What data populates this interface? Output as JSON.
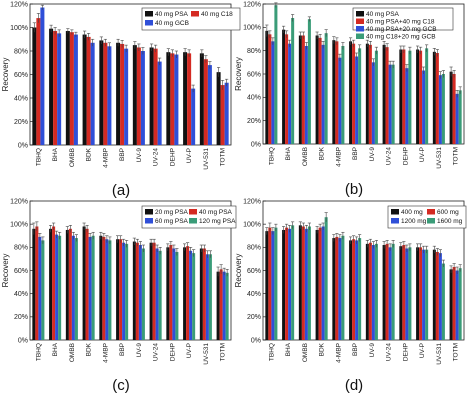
{
  "figure": {
    "categories": [
      "TBHQ",
      "BHA",
      "OMBB",
      "BDK",
      "4-MBP",
      "BBP",
      "UV-9",
      "UV-24",
      "DEHP",
      "UV-P",
      "UV-531",
      "TOTM"
    ],
    "ylabel": "Recovery",
    "ylim": [
      0,
      120
    ],
    "yticks": [
      "0%",
      "20%",
      "40%",
      "60%",
      "80%",
      "100%",
      "120%"
    ]
  },
  "chart_data": [
    {
      "panel": "(a)",
      "type": "bar",
      "ylabel": "Recovery",
      "ylim": [
        0,
        120
      ],
      "legend_position": "top-right",
      "categories": [
        "TBHQ",
        "BHA",
        "OMBB",
        "BDK",
        "4-MBP",
        "BBP",
        "UV-9",
        "UV-24",
        "DEHP",
        "UV-P",
        "UV-531",
        "TOTM"
      ],
      "series": [
        {
          "name": "40 mg PSA",
          "color": "#111111",
          "values": [
            100,
            99,
            97,
            94,
            89,
            87,
            85,
            83,
            79,
            79,
            78,
            62
          ]
        },
        {
          "name": "40 mg C18",
          "color": "#d42a22",
          "values": [
            108,
            97,
            96,
            92,
            87,
            86,
            83,
            82,
            78,
            78,
            73,
            51
          ]
        },
        {
          "name": "40 mg GCB",
          "color": "#2f4fd8",
          "values": [
            117,
            95,
            94,
            87,
            84,
            82,
            80,
            71,
            77,
            48,
            68,
            53
          ]
        }
      ],
      "errors": [
        [
          4,
          3,
          2,
          3,
          3,
          3,
          3,
          3,
          3,
          3,
          3,
          4
        ],
        [
          4,
          3,
          2,
          3,
          3,
          3,
          3,
          3,
          3,
          3,
          3,
          4
        ],
        [
          2,
          3,
          2,
          3,
          3,
          3,
          3,
          3,
          3,
          3,
          3,
          3
        ]
      ]
    },
    {
      "panel": "(b)",
      "type": "bar",
      "ylabel": "Recovery",
      "ylim": [
        0,
        120
      ],
      "legend_position": "top-right",
      "categories": [
        "TBHQ",
        "BHA",
        "OMBB",
        "BDK",
        "4-MBP",
        "BBP",
        "UV-9",
        "UV-24",
        "DEHP",
        "UV-P",
        "UV-531",
        "TOTM"
      ],
      "series": [
        {
          "name": "40 mg PSA",
          "color": "#111111",
          "values": [
            97,
            98,
            93,
            93,
            89,
            88,
            86,
            85,
            81,
            81,
            79,
            62
          ]
        },
        {
          "name": "40 mg PSA+40 mg C18",
          "color": "#d42a22",
          "values": [
            94,
            94,
            93,
            91,
            88,
            86,
            85,
            83,
            81,
            80,
            78,
            60
          ]
        },
        {
          "name": "40 mg PSA+20 mg GCB",
          "color": "#2f4fd8",
          "values": [
            88,
            86,
            84,
            85,
            74,
            75,
            70,
            68,
            65,
            63,
            59,
            43
          ]
        },
        {
          "name": "40 mg C18+20 mg GCB",
          "color": "#3a9c78",
          "values": [
            119,
            108,
            107,
            95,
            84,
            82,
            80,
            68,
            80,
            82,
            60,
            46
          ]
        }
      ],
      "errors": [
        [
          5,
          3,
          3,
          3,
          3,
          3,
          3,
          3,
          3,
          3,
          3,
          4
        ],
        [
          3,
          3,
          3,
          3,
          3,
          3,
          3,
          3,
          3,
          3,
          3,
          3
        ],
        [
          3,
          3,
          3,
          3,
          3,
          3,
          3,
          3,
          3,
          3,
          3,
          3
        ],
        [
          2,
          3,
          2,
          3,
          3,
          3,
          3,
          3,
          3,
          3,
          3,
          3
        ]
      ]
    },
    {
      "panel": "(c)",
      "type": "bar",
      "ylabel": "Recovery",
      "ylim": [
        0,
        120
      ],
      "legend_position": "top-right",
      "categories": [
        "TBHQ",
        "BHA",
        "OMBB",
        "BDK",
        "4-MBP",
        "BBP",
        "UV-9",
        "UV-24",
        "DEHP",
        "UV-P",
        "UV-531",
        "TOTM"
      ],
      "series": [
        {
          "name": "20 mg PSA",
          "color": "#111111",
          "values": [
            96,
            96,
            95,
            98,
            90,
            87,
            85,
            84,
            80,
            80,
            79,
            59
          ]
        },
        {
          "name": "40 mg PSA",
          "color": "#d42a22",
          "values": [
            98,
            98,
            96,
            96,
            89,
            87,
            84,
            84,
            82,
            81,
            79,
            61
          ]
        },
        {
          "name": "60 mg PSA",
          "color": "#2f4fd8",
          "values": [
            89,
            91,
            90,
            89,
            87,
            84,
            82,
            79,
            79,
            77,
            74,
            59
          ]
        },
        {
          "name": "120 mg PSA",
          "color": "#3a9c78",
          "values": [
            86,
            90,
            88,
            90,
            86,
            83,
            79,
            77,
            76,
            75,
            74,
            58
          ]
        }
      ],
      "errors": [
        [
          5,
          3,
          3,
          3,
          3,
          3,
          3,
          3,
          3,
          3,
          3,
          4
        ],
        [
          4,
          3,
          3,
          3,
          3,
          3,
          3,
          3,
          3,
          3,
          3,
          4
        ],
        [
          3,
          3,
          3,
          3,
          3,
          3,
          3,
          3,
          3,
          3,
          3,
          3
        ],
        [
          3,
          3,
          3,
          3,
          3,
          3,
          3,
          3,
          3,
          3,
          3,
          3
        ]
      ]
    },
    {
      "panel": "(d)",
      "type": "bar",
      "ylabel": "Recovery",
      "ylim": [
        0,
        120
      ],
      "legend_position": "top-right",
      "categories": [
        "TBHQ",
        "BHA",
        "OMBB",
        "BDK",
        "4-MBP",
        "BBP",
        "UV-9",
        "UV-24",
        "DEHP",
        "UV-P",
        "UV-531",
        "TOTM"
      ],
      "series": [
        {
          "name": "400 mg",
          "color": "#111111",
          "values": [
            94,
            95,
            99,
            95,
            88,
            86,
            83,
            82,
            81,
            80,
            78,
            61
          ]
        },
        {
          "name": "600 mg",
          "color": "#d42a22",
          "values": [
            97,
            97,
            98,
            97,
            89,
            87,
            84,
            83,
            82,
            80,
            76,
            63
          ]
        },
        {
          "name": "1200 mg",
          "color": "#2f4fd8",
          "values": [
            94,
            96,
            96,
            98,
            88,
            86,
            82,
            80,
            79,
            78,
            75,
            60
          ]
        },
        {
          "name": "1600 mg",
          "color": "#3a9c78",
          "values": [
            97,
            99,
            98,
            106,
            90,
            88,
            83,
            83,
            80,
            78,
            66,
            62
          ]
        }
      ],
      "errors": [
        [
          3,
          3,
          3,
          3,
          3,
          3,
          3,
          3,
          3,
          3,
          3,
          3
        ],
        [
          4,
          3,
          3,
          3,
          3,
          3,
          3,
          3,
          3,
          3,
          3,
          3
        ],
        [
          3,
          3,
          3,
          3,
          3,
          3,
          3,
          3,
          3,
          3,
          3,
          3
        ],
        [
          3,
          3,
          3,
          4,
          3,
          3,
          3,
          3,
          3,
          3,
          3,
          3
        ]
      ]
    }
  ]
}
